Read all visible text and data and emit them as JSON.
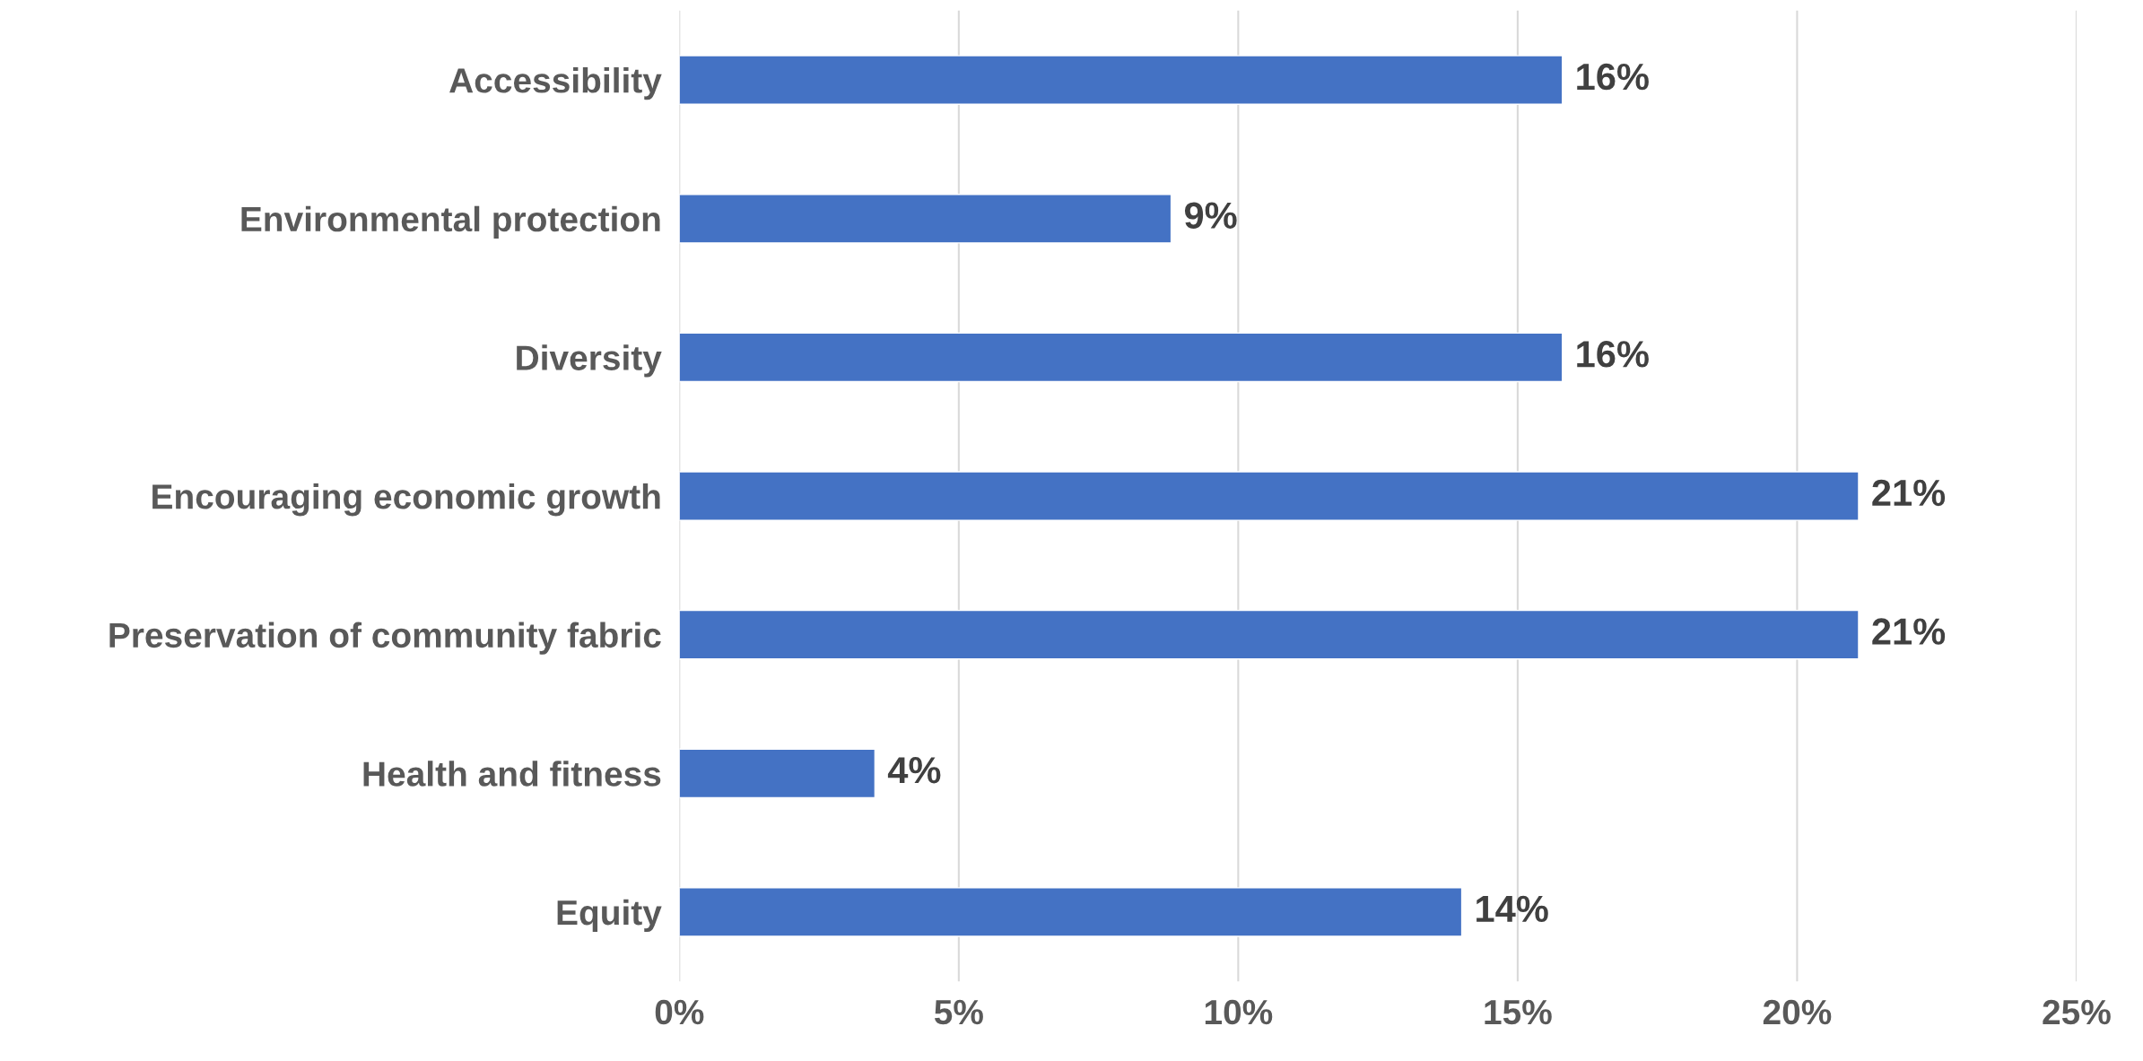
{
  "chart_data": {
    "type": "bar",
    "orientation": "horizontal",
    "categories": [
      "Accessibility",
      "Environmental protection",
      "Diversity",
      "Encouraging economic growth",
      "Preservation of community fabric",
      "Health and fitness",
      "Equity"
    ],
    "values": [
      15.8,
      8.8,
      15.8,
      21.1,
      21.1,
      3.5,
      14.0
    ],
    "value_labels": [
      "16%",
      "9%",
      "16%",
      "21%",
      "21%",
      "4%",
      "14%"
    ],
    "color": "#4472c4",
    "xlim": [
      0,
      25
    ],
    "xticks": [
      {
        "value": 0,
        "label": "0%"
      },
      {
        "value": 5,
        "label": "5%"
      },
      {
        "value": 10,
        "label": "10%"
      },
      {
        "value": 15,
        "label": "15%"
      },
      {
        "value": 20,
        "label": "20%"
      },
      {
        "value": 25,
        "label": "25%"
      }
    ],
    "grid": "x",
    "legend": false
  }
}
